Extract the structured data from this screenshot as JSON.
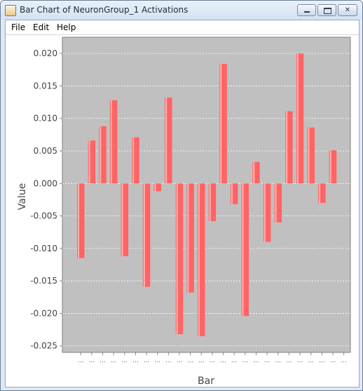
{
  "window": {
    "title": "Bar Chart of NeuronGroup_1 Activations"
  },
  "menu": {
    "items": [
      "File",
      "Edit",
      "Help"
    ]
  },
  "colors": {
    "plot_background": "#c0c0c0",
    "bar_fill": "#ff6464",
    "bar_highlight": "#ffb0b0",
    "gridline": "#ffffff"
  },
  "chart_data": {
    "type": "bar",
    "title": "",
    "xlabel": "Bar",
    "ylabel": "Value",
    "ylim": [
      -0.026,
      0.0225
    ],
    "yticks": [
      0.02,
      0.015,
      0.01,
      0.005,
      0.0,
      -0.005,
      -0.01,
      -0.015,
      -0.02,
      -0.025
    ],
    "ytick_labels": [
      "0.020",
      "0.015",
      "0.010",
      "0.005",
      "0.000",
      "-0.005",
      "-0.010",
      "-0.015",
      "-0.020",
      "-0.025"
    ],
    "grid": true,
    "categories": [
      "...",
      "...",
      "...",
      "...",
      "...",
      "...",
      "...",
      "...",
      "...",
      "...",
      "...",
      "...",
      "...",
      "...",
      "...",
      "...",
      "...",
      "...",
      "...",
      "...",
      "...",
      "...",
      "...",
      "...",
      "..."
    ],
    "values": [
      -0.0115,
      0.0066,
      0.0088,
      0.0128,
      -0.0112,
      0.0071,
      -0.0159,
      -0.0012,
      0.0132,
      -0.0232,
      -0.0168,
      -0.0235,
      -0.0058,
      0.0184,
      -0.0032,
      -0.0204,
      0.0033,
      -0.009,
      -0.006,
      0.0111,
      0.02,
      0.0086,
      -0.003,
      0.0051,
      0.0
    ]
  }
}
